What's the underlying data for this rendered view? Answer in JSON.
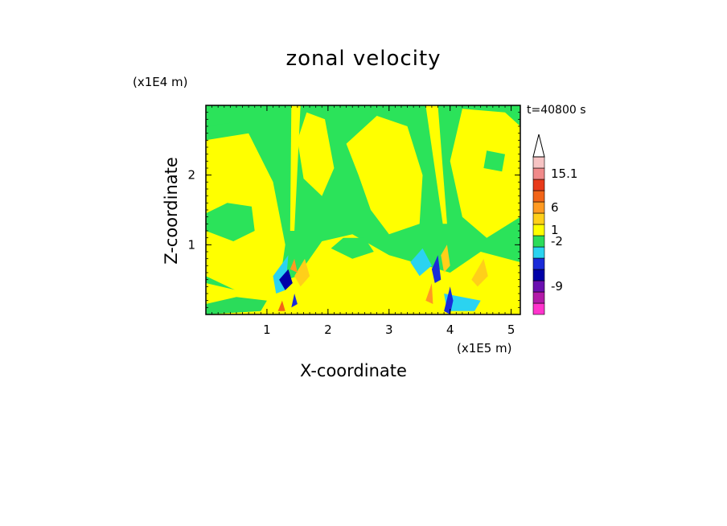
{
  "chart_data": {
    "type": "heatmap",
    "title": "zonal velocity",
    "xlabel": "X-coordinate",
    "ylabel": "Z-coordinate",
    "x_unit": "(x1E5 m)",
    "y_unit": "(x1E4 m)",
    "time_label": "t=40800 s",
    "x_ticks": [
      1,
      2,
      3,
      4,
      5
    ],
    "y_ticks": [
      1,
      2
    ],
    "xlim": [
      0,
      5.15
    ],
    "ylim": [
      0,
      3.0
    ],
    "colorbar": {
      "labeled_ticks": [
        {
          "label": "15.1",
          "value": 15.1
        },
        {
          "label": "6",
          "value": 6
        },
        {
          "label": "1",
          "value": 1
        },
        {
          "label": "-2",
          "value": -2
        },
        {
          "label": "-9",
          "value": -9
        }
      ],
      "colors": [
        "#ff33cc",
        "#b31aa8",
        "#6a0fb0",
        "#0000a8",
        "#1a2bd9",
        "#2bd3f0",
        "#2bdc5a",
        "#ffff00",
        "#ffcf1a",
        "#ff9a22",
        "#f26418",
        "#e83a1a",
        "#f08a8a",
        "#f6c3c3"
      ]
    },
    "field": {
      "background": "#2be35a",
      "regions": [
        {
          "color": "#ffff00",
          "poly": [
            [
              0.0,
              2.5
            ],
            [
              0.7,
              2.6
            ],
            [
              1.1,
              1.9
            ],
            [
              1.3,
              1.0
            ],
            [
              1.2,
              0.4
            ],
            [
              0.6,
              0.3
            ],
            [
              0.0,
              0.55
            ]
          ]
        },
        {
          "color": "#ffff00",
          "poly": [
            [
              2.3,
              2.45
            ],
            [
              2.8,
              2.85
            ],
            [
              3.3,
              2.7
            ],
            [
              3.55,
              2.0
            ],
            [
              3.5,
              1.3
            ],
            [
              3.0,
              1.15
            ],
            [
              2.7,
              1.5
            ],
            [
              2.5,
              2.0
            ]
          ]
        },
        {
          "color": "#ffff00",
          "poly": [
            [
              1.65,
              2.9
            ],
            [
              1.95,
              2.8
            ],
            [
              2.1,
              2.1
            ],
            [
              1.9,
              1.7
            ],
            [
              1.6,
              1.95
            ],
            [
              1.5,
              2.5
            ]
          ]
        },
        {
          "color": "#ffff00",
          "poly": [
            [
              4.2,
              2.95
            ],
            [
              4.9,
              2.9
            ],
            [
              5.15,
              2.7
            ],
            [
              5.15,
              1.4
            ],
            [
              4.6,
              1.1
            ],
            [
              4.2,
              1.4
            ],
            [
              4.0,
              2.2
            ]
          ]
        },
        {
          "color": "#ffff00",
          "poly": [
            [
              0.0,
              0.0
            ],
            [
              5.15,
              0.0
            ],
            [
              5.15,
              0.75
            ],
            [
              4.5,
              0.9
            ],
            [
              4.0,
              0.6
            ],
            [
              3.6,
              0.7
            ],
            [
              3.0,
              0.85
            ],
            [
              2.4,
              1.15
            ],
            [
              1.9,
              1.05
            ],
            [
              1.5,
              0.55
            ],
            [
              1.0,
              0.4
            ],
            [
              0.5,
              0.35
            ],
            [
              0.0,
              0.45
            ]
          ]
        },
        {
          "color": "#ffff00",
          "poly": [
            [
              1.4,
              3.0
            ],
            [
              1.55,
              3.0
            ],
            [
              1.45,
              1.2
            ],
            [
              1.38,
              1.2
            ]
          ]
        },
        {
          "color": "#ffff00",
          "poly": [
            [
              3.6,
              3.0
            ],
            [
              3.8,
              3.0
            ],
            [
              3.95,
              1.3
            ],
            [
              3.88,
              1.3
            ]
          ]
        },
        {
          "color": "#2be35a",
          "poly": [
            [
              0.0,
              1.2
            ],
            [
              0.45,
              1.05
            ],
            [
              0.8,
              1.2
            ],
            [
              0.75,
              1.55
            ],
            [
              0.35,
              1.6
            ],
            [
              0.0,
              1.45
            ]
          ]
        },
        {
          "color": "#2be35a",
          "poly": [
            [
              0.0,
              2.7
            ],
            [
              0.4,
              2.75
            ],
            [
              0.5,
              2.95
            ],
            [
              0.0,
              3.0
            ]
          ]
        },
        {
          "color": "#2be35a",
          "poly": [
            [
              4.55,
              2.1
            ],
            [
              4.85,
              2.05
            ],
            [
              4.9,
              2.3
            ],
            [
              4.6,
              2.35
            ]
          ]
        },
        {
          "color": "#2be35a",
          "poly": [
            [
              2.05,
              0.95
            ],
            [
              2.4,
              0.8
            ],
            [
              2.75,
              0.9
            ],
            [
              2.6,
              1.1
            ],
            [
              2.25,
              1.1
            ]
          ]
        },
        {
          "color": "#2bdc5a",
          "poly": [
            [
              0.0,
              0.15
            ],
            [
              0.5,
              0.25
            ],
            [
              1.0,
              0.2
            ],
            [
              0.9,
              0.05
            ],
            [
              0.0,
              0.0
            ]
          ]
        },
        {
          "color": "#2bd3f0",
          "poly": [
            [
              1.1,
              0.55
            ],
            [
              1.35,
              0.85
            ],
            [
              1.3,
              0.35
            ],
            [
              1.15,
              0.3
            ]
          ]
        },
        {
          "color": "#2bd3f0",
          "poly": [
            [
              3.35,
              0.75
            ],
            [
              3.55,
              0.95
            ],
            [
              3.7,
              0.7
            ],
            [
              3.5,
              0.55
            ]
          ]
        },
        {
          "color": "#2bd3f0",
          "poly": [
            [
              3.9,
              0.3
            ],
            [
              4.5,
              0.2
            ],
            [
              4.4,
              0.05
            ],
            [
              3.95,
              0.05
            ]
          ]
        },
        {
          "color": "#0000a8",
          "poly": [
            [
              1.2,
              0.5
            ],
            [
              1.35,
              0.65
            ],
            [
              1.42,
              0.45
            ],
            [
              1.3,
              0.35
            ]
          ]
        },
        {
          "color": "#1a2bd9",
          "poly": [
            [
              3.7,
              0.65
            ],
            [
              3.8,
              0.85
            ],
            [
              3.85,
              0.5
            ],
            [
              3.75,
              0.45
            ]
          ]
        },
        {
          "color": "#1a2bd9",
          "poly": [
            [
              3.9,
              0.05
            ],
            [
              4.0,
              0.4
            ],
            [
              4.05,
              0.2
            ],
            [
              4.0,
              0.0
            ]
          ]
        },
        {
          "color": "#1a2bd9",
          "poly": [
            [
              1.4,
              0.1
            ],
            [
              1.45,
              0.3
            ],
            [
              1.5,
              0.15
            ]
          ]
        },
        {
          "color": "#ffcf1a",
          "poly": [
            [
              1.45,
              0.55
            ],
            [
              1.62,
              0.8
            ],
            [
              1.7,
              0.55
            ],
            [
              1.55,
              0.4
            ]
          ]
        },
        {
          "color": "#ffcf1a",
          "poly": [
            [
              3.85,
              0.85
            ],
            [
              3.95,
              1.0
            ],
            [
              4.0,
              0.7
            ],
            [
              3.9,
              0.6
            ]
          ]
        },
        {
          "color": "#ffcf1a",
          "poly": [
            [
              4.35,
              0.5
            ],
            [
              4.55,
              0.8
            ],
            [
              4.62,
              0.55
            ],
            [
              4.45,
              0.4
            ]
          ]
        },
        {
          "color": "#ff9a22",
          "poly": [
            [
              1.38,
              0.65
            ],
            [
              1.45,
              0.8
            ],
            [
              1.5,
              0.6
            ]
          ]
        },
        {
          "color": "#f26418",
          "poly": [
            [
              1.18,
              0.05
            ],
            [
              1.25,
              0.2
            ],
            [
              1.3,
              0.05
            ]
          ]
        },
        {
          "color": "#ff9a22",
          "poly": [
            [
              3.6,
              0.2
            ],
            [
              3.7,
              0.45
            ],
            [
              3.72,
              0.15
            ]
          ]
        }
      ]
    }
  }
}
